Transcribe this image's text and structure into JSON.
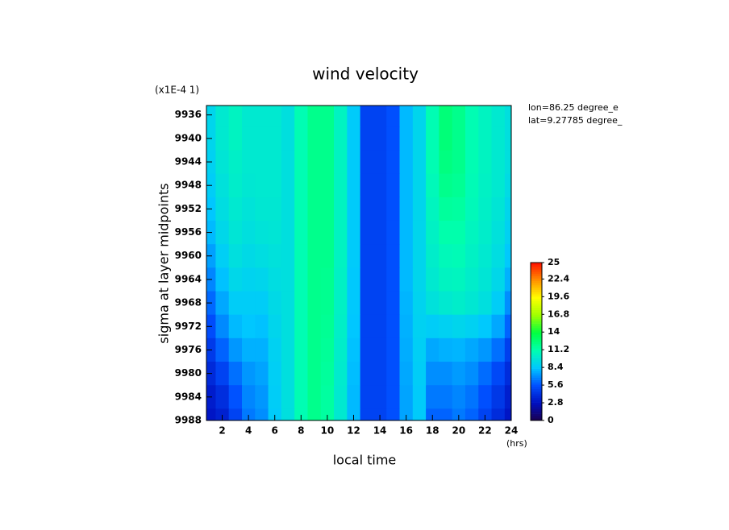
{
  "chart_data": {
    "type": "contour",
    "title": "wind velocity",
    "scale_note": "(x1E-4 1)",
    "x_label": "local time",
    "x_unit": "(hrs)",
    "y_label": "sigma at layer midpoints",
    "annotations": [
      "lon=86.25 degree_e",
      "lat=9.27785 degree_"
    ],
    "x": [
      1,
      2,
      3,
      4,
      5,
      6,
      7,
      8,
      9,
      10,
      11,
      12,
      13,
      14,
      15,
      16,
      17,
      18,
      19,
      20,
      21,
      22,
      23,
      24
    ],
    "y": [
      9936,
      9940,
      9944,
      9948,
      9952,
      9956,
      9960,
      9964,
      9968,
      9972,
      9976,
      9980,
      9984,
      9988
    ],
    "z": [
      [
        9,
        10,
        10.5,
        10,
        10,
        10,
        9.5,
        11,
        12,
        12,
        10.5,
        8.5,
        5,
        5,
        5.5,
        8,
        9,
        11,
        12.5,
        12,
        11,
        10.5,
        10,
        9.5
      ],
      [
        9,
        10,
        10.5,
        10,
        10,
        10,
        9.5,
        11,
        12,
        12,
        10.5,
        8.5,
        5,
        5,
        5.5,
        8,
        9,
        11,
        12.5,
        12,
        11,
        10.5,
        10,
        9.5
      ],
      [
        8.8,
        9.8,
        10.3,
        10,
        10,
        10,
        9.5,
        11,
        12,
        12,
        10.5,
        8.5,
        5,
        5,
        5.5,
        8,
        9,
        11,
        12.3,
        12,
        11,
        10.5,
        10,
        9.5
      ],
      [
        8.6,
        9.6,
        10.2,
        9.9,
        10,
        10,
        9.5,
        11,
        12,
        12,
        10.5,
        8.5,
        5,
        5,
        5.5,
        8,
        9,
        10.8,
        12,
        11.8,
        10.9,
        10.4,
        10,
        9.3
      ],
      [
        8.3,
        9.4,
        10,
        9.7,
        9.9,
        9.9,
        9.5,
        11,
        12,
        12,
        10.5,
        8.5,
        5,
        5,
        5.5,
        8,
        9,
        10.6,
        11.6,
        11.5,
        10.8,
        10.3,
        9.8,
        9
      ],
      [
        8,
        9.1,
        9.8,
        9.5,
        9.7,
        9.8,
        9.5,
        11,
        12,
        12,
        10.5,
        8.5,
        5,
        5,
        5.5,
        8,
        9,
        10.4,
        11.2,
        11.2,
        10.6,
        10.2,
        9.6,
        8.8
      ],
      [
        7.4,
        8.7,
        9.5,
        9.2,
        9.4,
        9.6,
        9.5,
        11,
        12,
        12,
        10.5,
        8.5,
        5,
        5,
        5.5,
        8,
        9,
        10.2,
        10.8,
        10.9,
        10.4,
        10,
        9.4,
        8.4
      ],
      [
        6.8,
        8.2,
        9.1,
        8.9,
        9,
        9.4,
        9.5,
        11,
        12,
        11.9,
        10.4,
        8.4,
        5,
        5,
        5.5,
        8,
        9,
        10,
        10.5,
        10.6,
        10.2,
        9.8,
        9.1,
        7.8
      ],
      [
        6.1,
        7.6,
        8.6,
        8.6,
        8.6,
        9.2,
        9.5,
        11,
        12,
        11.9,
        10.4,
        8.4,
        5,
        5,
        5.5,
        7.9,
        8.9,
        9.6,
        10,
        10.2,
        9.9,
        9.5,
        8.6,
        7
      ],
      [
        5.4,
        6.9,
        8,
        8.3,
        8.2,
        9,
        9.5,
        11,
        12,
        11.8,
        10.3,
        8.3,
        5,
        5,
        5.5,
        7.8,
        8.8,
        8.6,
        8.8,
        9,
        8.8,
        8.4,
        7.6,
        6
      ],
      [
        4.6,
        6,
        7.2,
        7.8,
        7.8,
        8.8,
        9.5,
        11,
        12,
        11.7,
        10.2,
        8.2,
        5,
        5,
        5.5,
        7.7,
        8.7,
        7.6,
        7.8,
        7.9,
        7.6,
        7.2,
        6.3,
        4.8
      ],
      [
        3.9,
        5,
        6.3,
        7.2,
        7.5,
        8.7,
        9.5,
        11,
        12,
        11.6,
        10.1,
        8.1,
        5,
        5,
        5.5,
        7.6,
        8.6,
        7,
        7,
        7.3,
        7,
        6.2,
        5.2,
        4
      ],
      [
        3.3,
        4.1,
        5.6,
        6.8,
        7.2,
        8.6,
        9.5,
        11,
        12,
        11.5,
        10,
        8,
        5,
        5,
        5.5,
        7.5,
        8.5,
        6.5,
        6.5,
        6.8,
        6.4,
        5.5,
        4.5,
        3.4
      ],
      [
        3,
        3.5,
        5,
        6.5,
        7,
        8.5,
        9.5,
        11,
        12,
        11.5,
        10,
        8,
        5,
        5,
        5.5,
        7.5,
        8.5,
        6,
        6,
        6.5,
        6,
        5,
        4,
        3
      ]
    ],
    "xlim": [
      0.8,
      24
    ],
    "xticks": [
      2,
      4,
      6,
      8,
      10,
      12,
      14,
      16,
      18,
      20,
      22,
      24
    ],
    "ylim": [
      9988,
      9934.4
    ],
    "yticks": [
      9936,
      9940,
      9944,
      9948,
      9952,
      9956,
      9960,
      9964,
      9968,
      9972,
      9976,
      9980,
      9984,
      9988
    ],
    "clim": [
      0,
      25
    ],
    "colorbar_ticks": [
      0,
      2.8,
      5.6,
      8.4,
      11.2,
      14,
      16.8,
      19.6,
      22.4,
      25
    ],
    "colorscale": [
      "#1a0050",
      "#0010c0",
      "#0050ff",
      "#00c8ff",
      "#00ffb0",
      "#00ff40",
      "#a0ff00",
      "#ffff00",
      "#ff9000",
      "#ff1000"
    ]
  }
}
